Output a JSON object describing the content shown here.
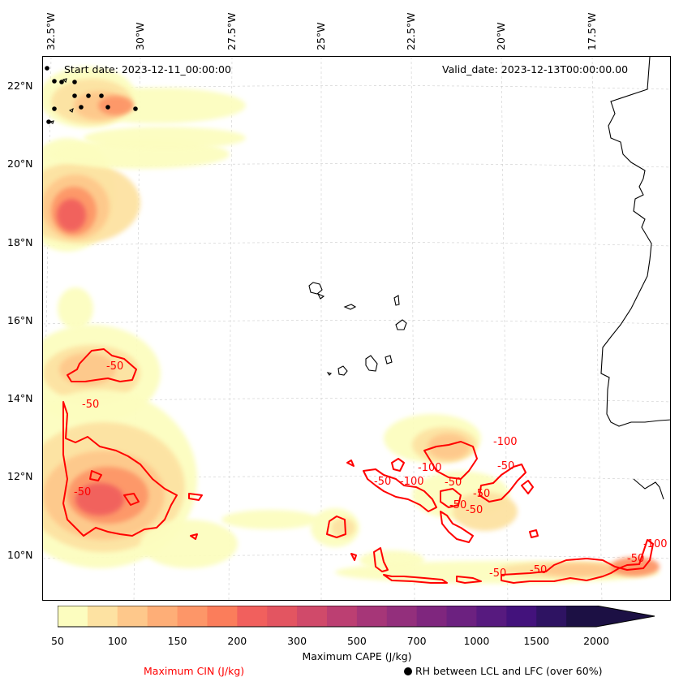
{
  "header": {
    "start_date": "Start date: 2023-12-11_00:00:00",
    "valid_date": "Valid_date: 2023-12-13T00:00:00.00"
  },
  "axes": {
    "lon_labels": [
      "32.5°W",
      "30°W",
      "27.5°W",
      "25°W",
      "22.5°W",
      "20°W",
      "17.5°W"
    ],
    "lat_labels": [
      "22°N",
      "20°N",
      "18°N",
      "16°N",
      "14°N",
      "12°N",
      "10°N"
    ],
    "gridlines": true
  },
  "colorbar": {
    "label": "Maximum CAPE (J/kg)",
    "ticks": [
      "50",
      "100",
      "150",
      "200",
      "300",
      "500",
      "700",
      "1000",
      "1500",
      "2000"
    ],
    "levels": [
      50,
      75,
      100,
      125,
      150,
      175,
      200,
      250,
      300,
      400,
      500,
      600,
      700,
      800,
      1000,
      1250,
      1500,
      1750,
      2000
    ],
    "colors": [
      "#fcfdbf",
      "#fde2a2",
      "#fec88b",
      "#feae77",
      "#fd9668",
      "#fb7d5b",
      "#f1605d",
      "#e35561",
      "#d04a6a",
      "#bc3f72",
      "#a63678",
      "#932f7c",
      "#7f267e",
      "#6c2180",
      "#571a7f",
      "#43127c",
      "#2e1362",
      "#1c1044"
    ],
    "extend": "max"
  },
  "legend": {
    "cin_label": "Maximum CIN (J/kg)",
    "rh_label": "RH between LCL and LFC (over 60%)",
    "cin_color": "#ff0000"
  },
  "contour_labels": [
    "-50",
    "-50",
    "-50",
    "-100",
    "-50",
    "-100",
    "-50",
    "-100",
    "-50",
    "-50",
    "-50",
    "-50",
    "-50",
    "-50",
    "-50",
    "-100"
  ],
  "map": {
    "ocean_color": "#ffffff",
    "coastline_color": "#000000",
    "cape_field_colors": [
      "#fcfdbf",
      "#fde2a2",
      "#fec88b",
      "#fd9668",
      "#f1605d",
      "#d04a6a",
      "#bc3f72"
    ]
  }
}
